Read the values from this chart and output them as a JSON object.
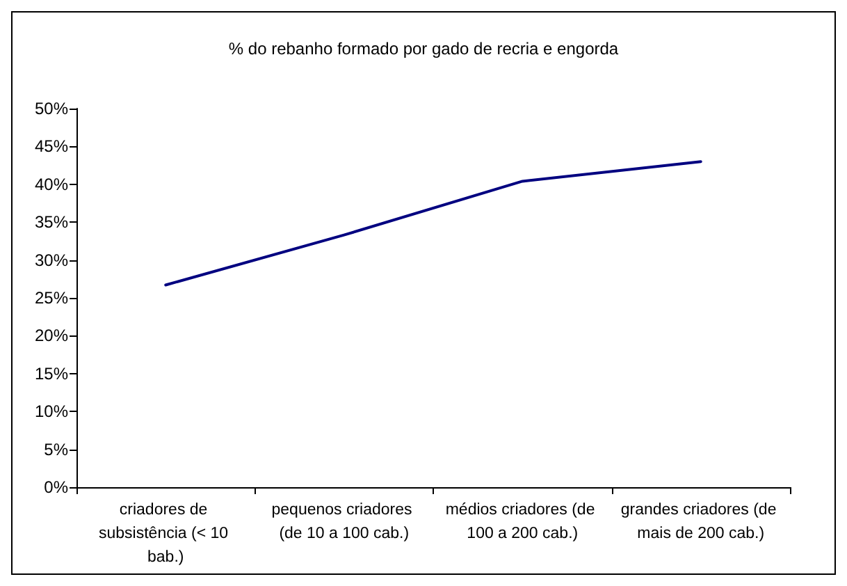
{
  "chart_data": {
    "type": "line",
    "title": "% do rebanho formado por gado de recria e engorda",
    "categories": [
      "criadores de subsistência (< 10 bab.)",
      "pequenos criadores (de 10 a 100 cab.)",
      "médios criadores (de 100 a 200 cab.)",
      "grandes criadores (de mais de 200 cab.)"
    ],
    "series": [
      {
        "color": "#000080",
        "values": [
          26.7,
          33.3,
          40.4,
          43.0
        ]
      }
    ],
    "ylim": [
      0,
      50
    ],
    "yticks": [
      {
        "value": 0,
        "label": "0%"
      },
      {
        "value": 5,
        "label": "5%"
      },
      {
        "value": 10,
        "label": "10%"
      },
      {
        "value": 15,
        "label": "15%"
      },
      {
        "value": 20,
        "label": "20%"
      },
      {
        "value": 25,
        "label": "25%"
      },
      {
        "value": 30,
        "label": "30%"
      },
      {
        "value": 35,
        "label": "35%"
      },
      {
        "value": 40,
        "label": "40%"
      },
      {
        "value": 45,
        "label": "45%"
      },
      {
        "value": 50,
        "label": "50%"
      }
    ],
    "grid": false,
    "marker": "none",
    "line_style": "solid"
  }
}
